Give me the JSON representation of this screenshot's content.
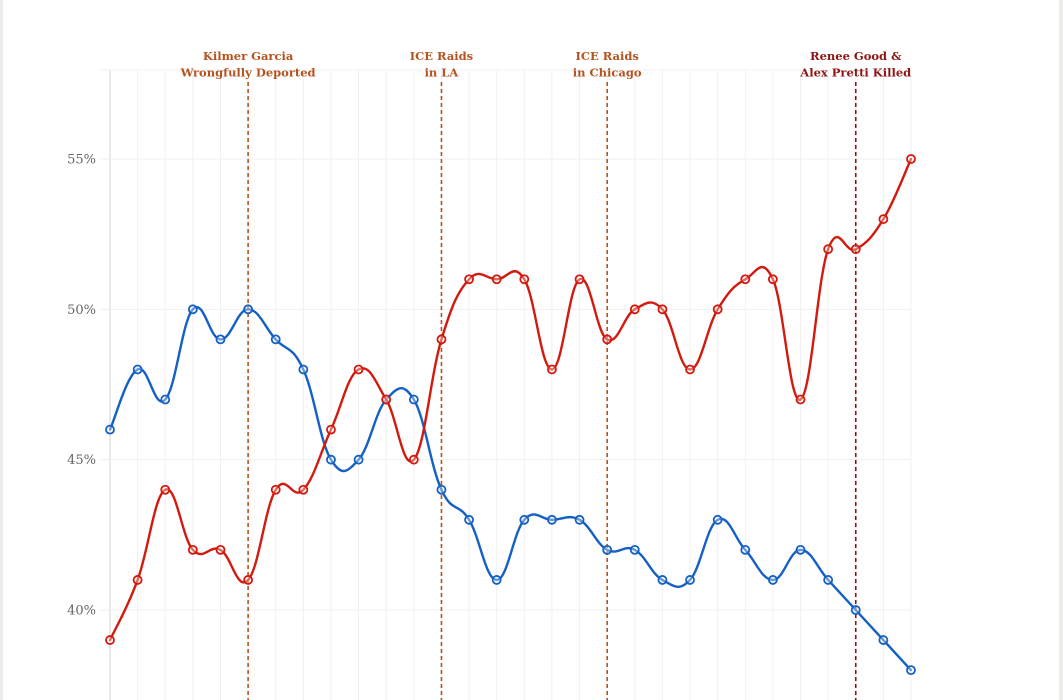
{
  "chart_data": {
    "type": "line",
    "title": "",
    "xlabel": "",
    "ylabel": "",
    "ylim": [
      37,
      58
    ],
    "yticks": [
      {
        "value": 40,
        "label": "40%"
      },
      {
        "value": 45,
        "label": "45%"
      },
      {
        "value": 50,
        "label": "50%"
      },
      {
        "value": 55,
        "label": "55%"
      }
    ],
    "x": [
      1,
      2,
      3,
      4,
      5,
      6,
      7,
      8,
      9,
      10,
      11,
      12,
      13,
      14,
      15,
      16,
      17,
      18,
      19,
      20,
      21,
      22,
      23,
      24,
      25,
      26,
      27,
      28,
      29,
      30
    ],
    "grid": true,
    "legend": null,
    "series": [
      {
        "name": "Blue series",
        "color": "#1560c4",
        "values": [
          46,
          48,
          47,
          50,
          49,
          50,
          49,
          48,
          45,
          45,
          47,
          47,
          44,
          43,
          41,
          43,
          43,
          43,
          42,
          42,
          41,
          41,
          43,
          42,
          41,
          42,
          41,
          40,
          39,
          38
        ]
      },
      {
        "name": "Red series",
        "color": "#d21a0e",
        "values": [
          39,
          41,
          44,
          42,
          42,
          41,
          44,
          44,
          46,
          48,
          47,
          45,
          49,
          51,
          51,
          51,
          48,
          51,
          49,
          50,
          50,
          48,
          50,
          51,
          51,
          47,
          52,
          52,
          53,
          55
        ]
      }
    ],
    "annotations": [
      {
        "index": 5,
        "lines": [
          "Kilmer Garcia",
          "Wrongfully Deported"
        ],
        "color": "#b5521e"
      },
      {
        "index": 12,
        "lines": [
          "ICE Raids",
          "in LA"
        ],
        "color": "#b5521e"
      },
      {
        "index": 18,
        "lines": [
          "ICE Raids",
          "in Chicago"
        ],
        "color": "#b5521e"
      },
      {
        "index": 27,
        "lines": [
          "Renee Good &",
          "Alex Pretti Killed"
        ],
        "color": "#8e1414"
      }
    ]
  }
}
